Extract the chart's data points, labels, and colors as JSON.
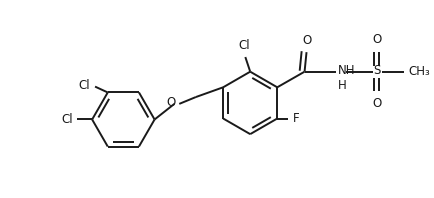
{
  "bg_color": "#ffffff",
  "line_color": "#1a1a1a",
  "line_width": 1.4,
  "font_size": 8.5,
  "figsize": [
    4.34,
    1.98
  ],
  "dpi": 100,
  "xlim": [
    0,
    4.34
  ],
  "ylim": [
    0,
    1.98
  ]
}
